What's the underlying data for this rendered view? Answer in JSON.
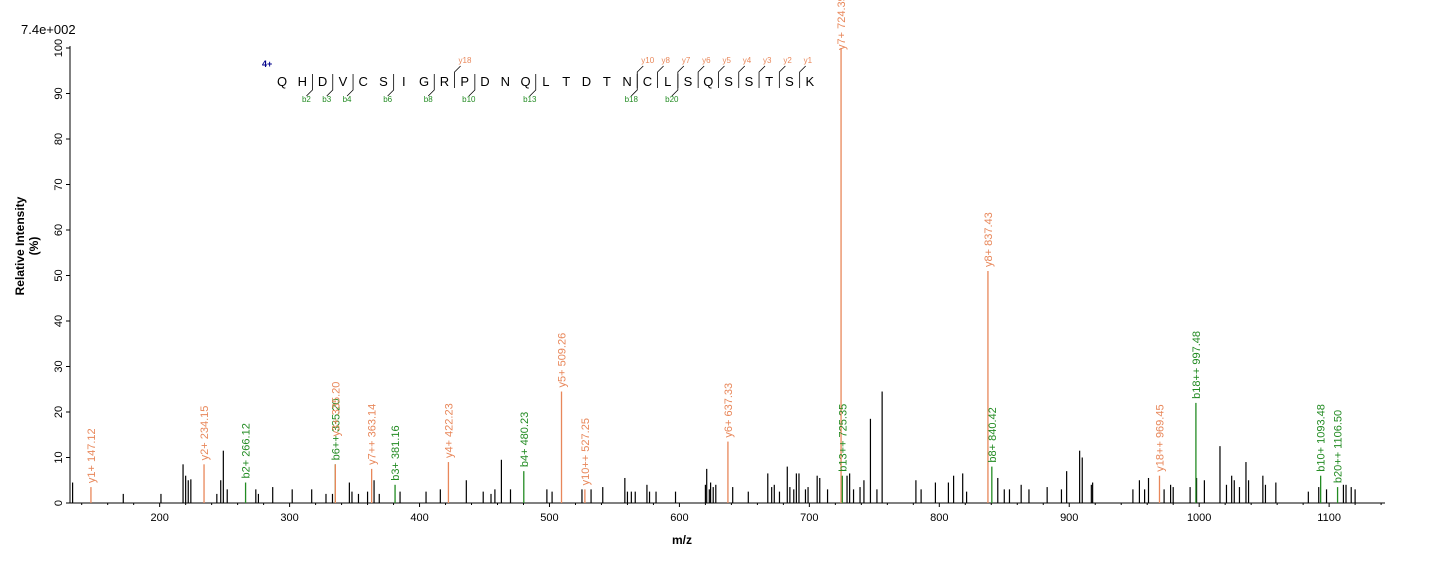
{
  "chart_data": {
    "type": "bar",
    "scale_label": "7.4e+002",
    "xlabel": "m/z",
    "ylabel": "Relative   Intensity (%)",
    "xlim": [
      131,
      1143
    ],
    "ylim": [
      0,
      100
    ],
    "x_ticks": [
      200,
      300,
      400,
      500,
      600,
      700,
      800,
      900,
      1000,
      1100
    ],
    "y_ticks": [
      0,
      10,
      20,
      30,
      40,
      50,
      60,
      70,
      80,
      90,
      100
    ],
    "colors": {
      "y_ion": "#e8875a",
      "b_ion": "#228b22",
      "unassigned": "#000000",
      "charge": "#00008b"
    },
    "peptide": {
      "charge": "4+",
      "residues": [
        "Q",
        "H",
        "D",
        "V",
        "C",
        "S",
        "I",
        "G",
        "R",
        "P",
        "D",
        "N",
        "Q",
        "L",
        "T",
        "D",
        "T",
        "N",
        "C",
        "L",
        "S",
        "Q",
        "S",
        "S",
        "T",
        "S",
        "K"
      ],
      "y_marks": [
        {
          "after": 8,
          "label": "y18"
        },
        {
          "after": 17,
          "label": "y10"
        },
        {
          "after": 18,
          "label": "y8"
        },
        {
          "after": 19,
          "label": "y7"
        },
        {
          "after": 20,
          "label": "y6"
        },
        {
          "after": 21,
          "label": "y5"
        },
        {
          "after": 22,
          "label": "y4"
        },
        {
          "after": 23,
          "label": "y3"
        },
        {
          "after": 24,
          "label": "y2"
        },
        {
          "after": 25,
          "label": "y1"
        }
      ],
      "b_marks": [
        {
          "after": 1,
          "label": "b2"
        },
        {
          "after": 2,
          "label": "b3"
        },
        {
          "after": 3,
          "label": "b4"
        },
        {
          "after": 5,
          "label": "b6"
        },
        {
          "after": 7,
          "label": "b8"
        },
        {
          "after": 9,
          "label": "b10"
        },
        {
          "after": 12,
          "label": "b13"
        },
        {
          "after": 17,
          "label": "b18"
        },
        {
          "after": 19,
          "label": "b20"
        }
      ]
    },
    "annotated_peaks": [
      {
        "mz": 147.12,
        "intensity": 3.5,
        "label": "y1+ 147.12",
        "ion": "y"
      },
      {
        "mz": 234.15,
        "intensity": 8.5,
        "label": "y2+ 234.15",
        "ion": "y"
      },
      {
        "mz": 266.12,
        "intensity": 4.5,
        "label": "b2+ 266.12",
        "ion": "b"
      },
      {
        "mz": 335.2,
        "intensity": 8.5,
        "label": "b6++ 335.20",
        "ion": "b"
      },
      {
        "mz": 335.2,
        "intensity": 8.5,
        "label": "y3+ 335.20",
        "ion": "y",
        "label_offset": 24
      },
      {
        "mz": 363.14,
        "intensity": 7.5,
        "label": "y7++ 363.14",
        "ion": "y"
      },
      {
        "mz": 381.16,
        "intensity": 4.0,
        "label": "b3+ 381.16",
        "ion": "b"
      },
      {
        "mz": 422.23,
        "intensity": 9.0,
        "label": "y4+ 422.23",
        "ion": "y"
      },
      {
        "mz": 480.23,
        "intensity": 7.0,
        "label": "b4+ 480.23",
        "ion": "b"
      },
      {
        "mz": 509.26,
        "intensity": 24.5,
        "label": "y5+ 509.26",
        "ion": "y"
      },
      {
        "mz": 527.25,
        "intensity": 3.0,
        "label": "y10++ 527.25",
        "ion": "y"
      },
      {
        "mz": 637.33,
        "intensity": 13.5,
        "label": "y6+ 637.33",
        "ion": "y"
      },
      {
        "mz": 724.39,
        "intensity": 100,
        "label": "y7+ 724.39",
        "ion": "y"
      },
      {
        "mz": 725.35,
        "intensity": 6.0,
        "label": "b13++ 725.35",
        "ion": "b"
      },
      {
        "mz": 837.43,
        "intensity": 51,
        "label": "y8+ 837.43",
        "ion": "y"
      },
      {
        "mz": 840.42,
        "intensity": 8.0,
        "label": "b8+ 840.42",
        "ion": "b"
      },
      {
        "mz": 969.45,
        "intensity": 6.0,
        "label": "y18++ 969.45",
        "ion": "y"
      },
      {
        "mz": 997.48,
        "intensity": 22,
        "label": "b18++ 997.48",
        "ion": "b"
      },
      {
        "mz": 1093.48,
        "intensity": 6.0,
        "label": "b10+ 1093.48",
        "ion": "b"
      },
      {
        "mz": 1106.5,
        "intensity": 3.5,
        "label": "b20++ 1106.50",
        "ion": "b"
      }
    ],
    "unassigned_peaks": [
      [
        133,
        4.5
      ],
      [
        172,
        2
      ],
      [
        201,
        2
      ],
      [
        218,
        8.5
      ],
      [
        220,
        6
      ],
      [
        222,
        5
      ],
      [
        224,
        5.2
      ],
      [
        244,
        2
      ],
      [
        247,
        5
      ],
      [
        249,
        11.5
      ],
      [
        252,
        3
      ],
      [
        274,
        3
      ],
      [
        276,
        2
      ],
      [
        287,
        3.5
      ],
      [
        302,
        3
      ],
      [
        317,
        3
      ],
      [
        328,
        2
      ],
      [
        333,
        2
      ],
      [
        346,
        4.5
      ],
      [
        348,
        2.5
      ],
      [
        353,
        2
      ],
      [
        360,
        2.5
      ],
      [
        365,
        5
      ],
      [
        369,
        2
      ],
      [
        385,
        2.5
      ],
      [
        405,
        2.5
      ],
      [
        416,
        3
      ],
      [
        436,
        5
      ],
      [
        449,
        2.5
      ],
      [
        455,
        2
      ],
      [
        458,
        3
      ],
      [
        463,
        9.5
      ],
      [
        470,
        3
      ],
      [
        498,
        3
      ],
      [
        502,
        2.5
      ],
      [
        525,
        3
      ],
      [
        532,
        3
      ],
      [
        541,
        3.5
      ],
      [
        558,
        5.5
      ],
      [
        560,
        2.5
      ],
      [
        563,
        2.5
      ],
      [
        566,
        2.5
      ],
      [
        575,
        4
      ],
      [
        577,
        2.5
      ],
      [
        582,
        2.5
      ],
      [
        597,
        2.5
      ],
      [
        620,
        4
      ],
      [
        621,
        7.5
      ],
      [
        623,
        3
      ],
      [
        624,
        4.5
      ],
      [
        626,
        3.5
      ],
      [
        628,
        4
      ],
      [
        641,
        3.5
      ],
      [
        653,
        2.5
      ],
      [
        668,
        6.5
      ],
      [
        671,
        3.5
      ],
      [
        673,
        4
      ],
      [
        677,
        2.5
      ],
      [
        683,
        8
      ],
      [
        685,
        3.5
      ],
      [
        688,
        3
      ],
      [
        690,
        6.5
      ],
      [
        692,
        6.5
      ],
      [
        697,
        3
      ],
      [
        699,
        3.5
      ],
      [
        706,
        6
      ],
      [
        708,
        5.5
      ],
      [
        714,
        3
      ],
      [
        729,
        6
      ],
      [
        731,
        6.5
      ],
      [
        734,
        3
      ],
      [
        739,
        3.5
      ],
      [
        742,
        5
      ],
      [
        747,
        18.5
      ],
      [
        752,
        3
      ],
      [
        756,
        24.5
      ],
      [
        782,
        5
      ],
      [
        786,
        3
      ],
      [
        797,
        4.5
      ],
      [
        807,
        4.5
      ],
      [
        811,
        6
      ],
      [
        818,
        6.5
      ],
      [
        821,
        2.5
      ],
      [
        845,
        5.5
      ],
      [
        850,
        3
      ],
      [
        854,
        3
      ],
      [
        863,
        4
      ],
      [
        869,
        3
      ],
      [
        883,
        3.5
      ],
      [
        894,
        3
      ],
      [
        898,
        7
      ],
      [
        908,
        11.5
      ],
      [
        910,
        10
      ],
      [
        917,
        4
      ],
      [
        918,
        4.5
      ],
      [
        949,
        3
      ],
      [
        954,
        5
      ],
      [
        958,
        3
      ],
      [
        961,
        5.5
      ],
      [
        973,
        3
      ],
      [
        978,
        4
      ],
      [
        980,
        3.5
      ],
      [
        993,
        3.5
      ],
      [
        998,
        5.5
      ],
      [
        1004,
        5
      ],
      [
        1016,
        12.5
      ],
      [
        1021,
        4
      ],
      [
        1025,
        6
      ],
      [
        1027,
        5
      ],
      [
        1031,
        3.5
      ],
      [
        1036,
        9
      ],
      [
        1038,
        5
      ],
      [
        1049,
        6
      ],
      [
        1051,
        4
      ],
      [
        1059,
        4.5
      ],
      [
        1084,
        2.5
      ],
      [
        1092,
        3.5
      ],
      [
        1098,
        3
      ],
      [
        1111,
        4
      ],
      [
        1113,
        4
      ],
      [
        1117,
        3.5
      ],
      [
        1120,
        3
      ]
    ]
  }
}
